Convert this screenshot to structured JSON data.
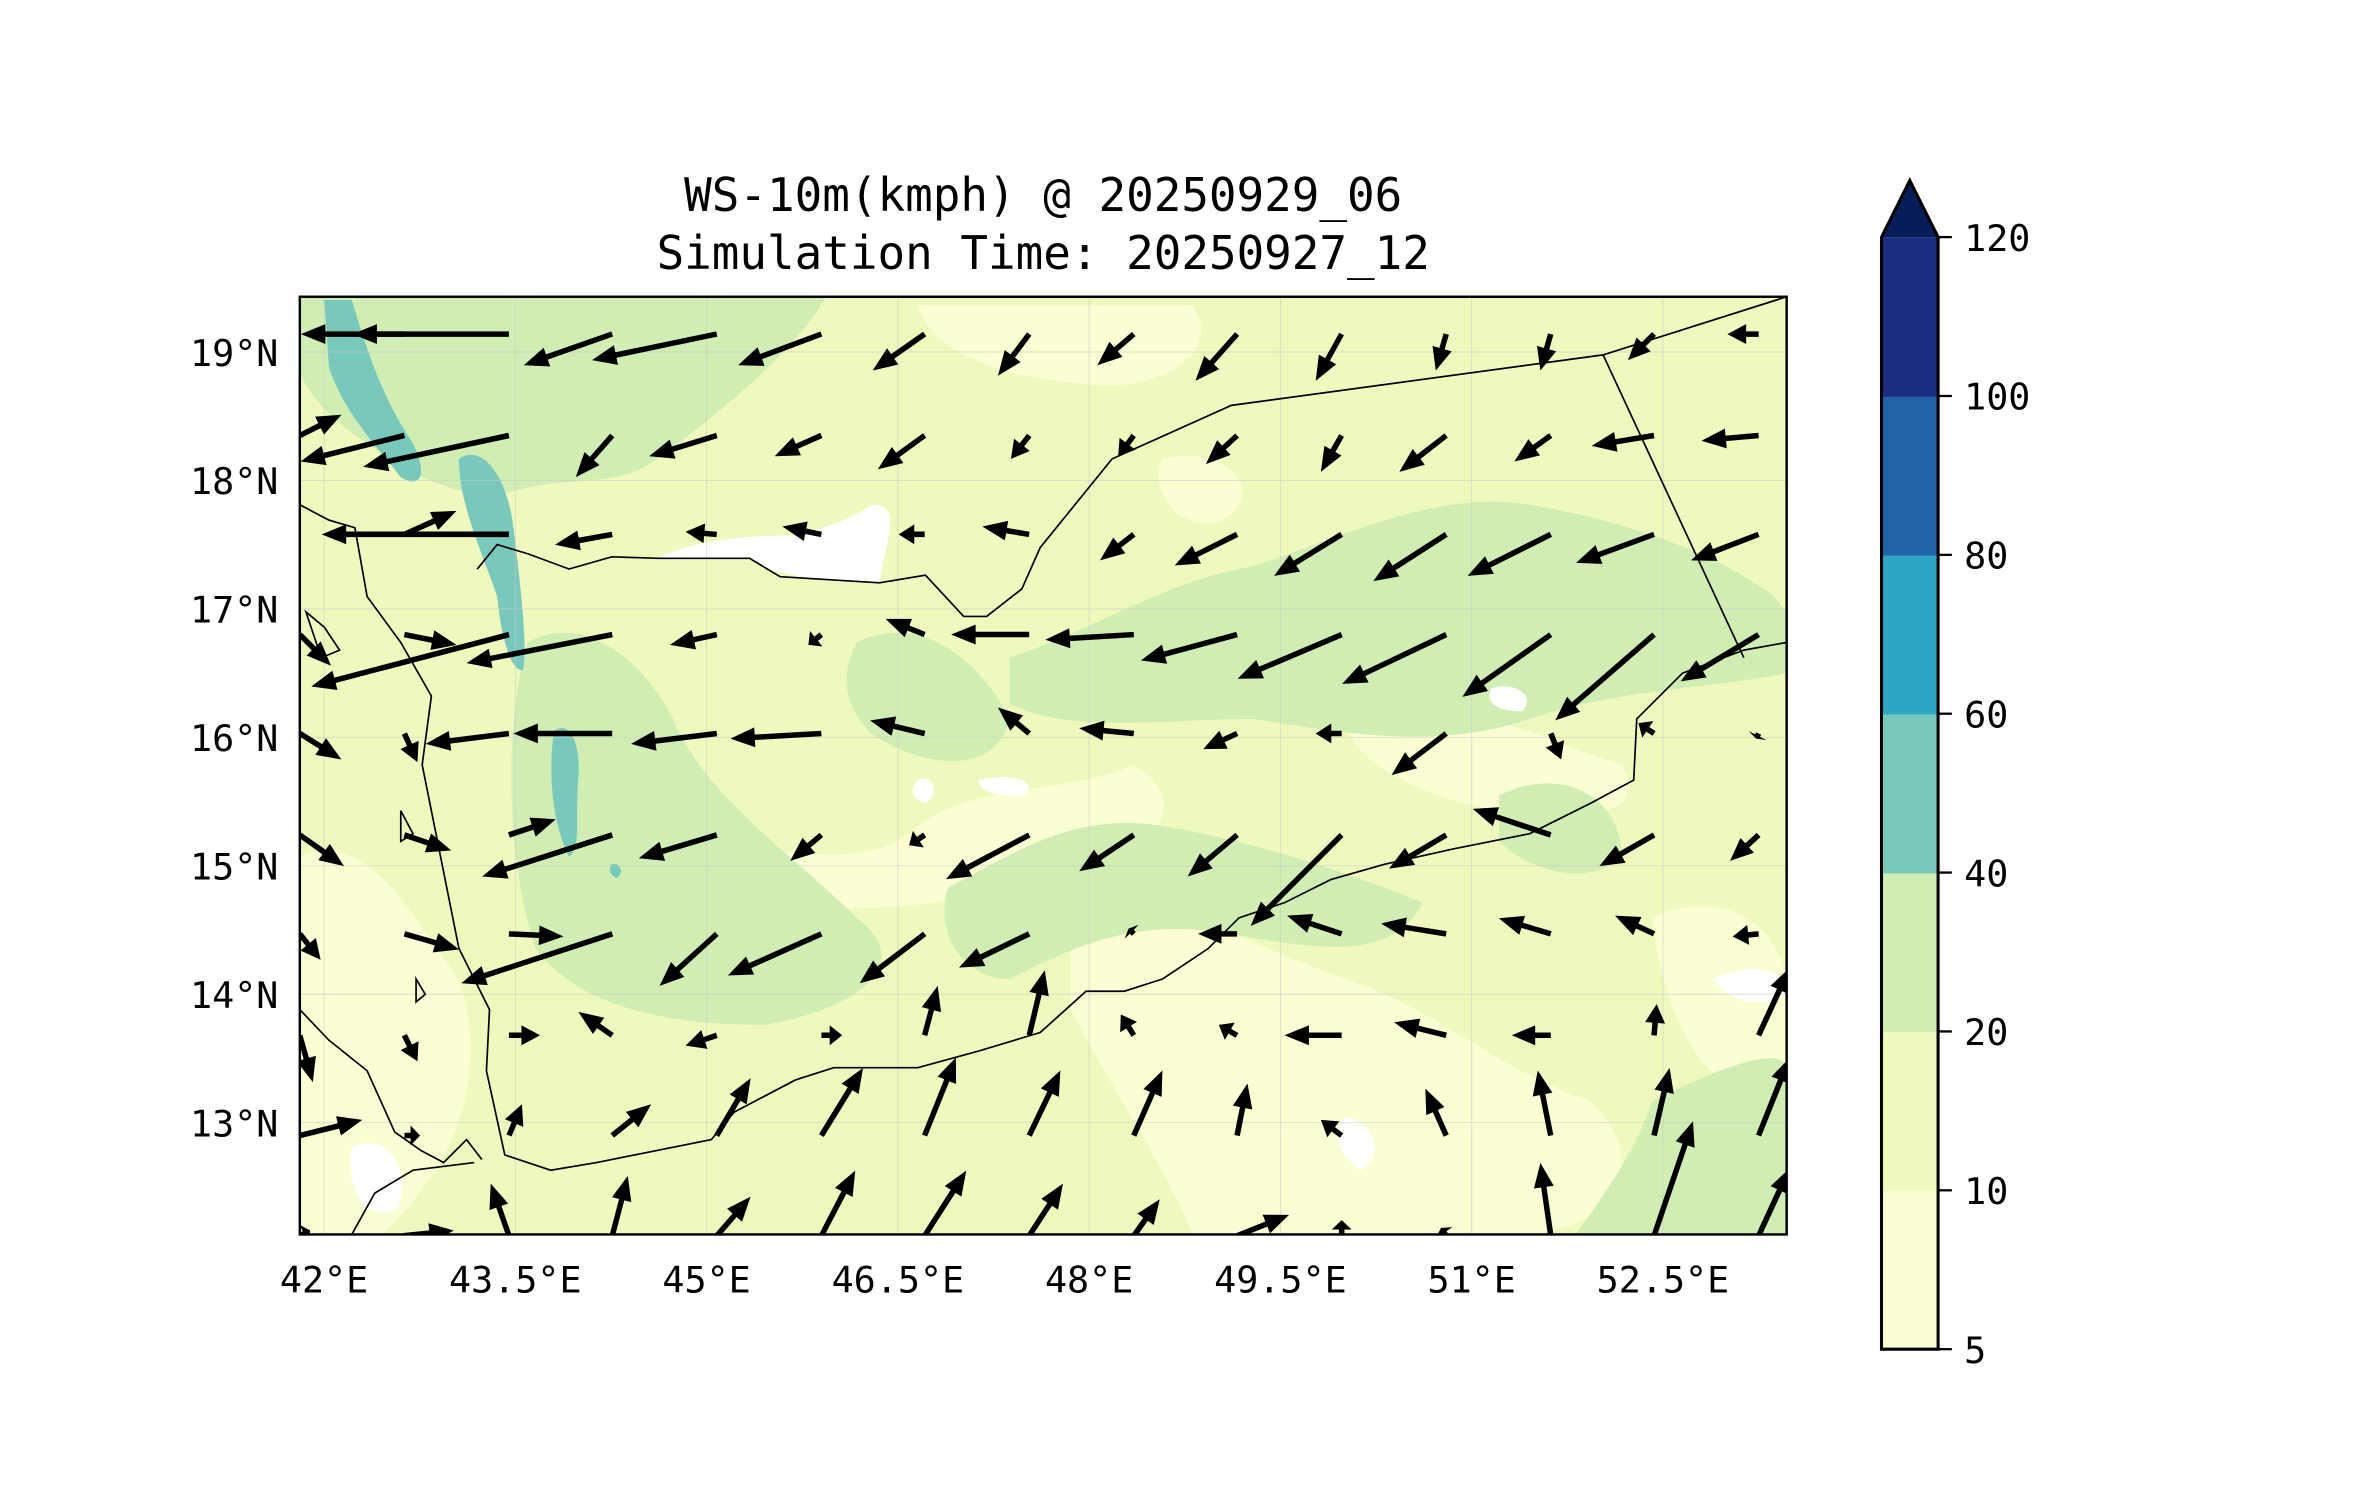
{
  "chart_data": {
    "type": "heatmap",
    "title_line1": "WS-10m(kmph) @ 20250929_06",
    "title_line2": "Simulation Time: 20250927_12",
    "xlabel": "",
    "ylabel": "",
    "xlim": [
      41.81,
      53.47
    ],
    "ylim": [
      12.13,
      19.43
    ],
    "x_ticks": [
      {
        "value": 42,
        "label": "42°E"
      },
      {
        "value": 43.5,
        "label": "43.5°E"
      },
      {
        "value": 45,
        "label": "45°E"
      },
      {
        "value": 46.5,
        "label": "46.5°E"
      },
      {
        "value": 48,
        "label": "48°E"
      },
      {
        "value": 49.5,
        "label": "49.5°E"
      },
      {
        "value": 51,
        "label": "51°E"
      },
      {
        "value": 52.5,
        "label": "52.5°E"
      }
    ],
    "y_ticks": [
      {
        "value": 19,
        "label": "19°N"
      },
      {
        "value": 18,
        "label": "18°N"
      },
      {
        "value": 17,
        "label": "17°N"
      },
      {
        "value": 16,
        "label": "16°N"
      },
      {
        "value": 15,
        "label": "15°N"
      },
      {
        "value": 14,
        "label": "14°N"
      },
      {
        "value": 13,
        "label": "13°N"
      }
    ],
    "grid": true,
    "colorbar": {
      "levels": [
        "5",
        "10",
        "20",
        "40",
        "60",
        "80",
        "100",
        "120"
      ],
      "colors": [
        "#fbfdd2",
        "#f0f9bd",
        "#d0edb4",
        "#78c9bb",
        "#2ea5c4",
        "#2262a8",
        "#1c2c80"
      ],
      "extend_color": "#081d58",
      "extend": "max",
      "placement": "right"
    },
    "wind_vectors": {
      "units": "kmph",
      "lon": [
        41.81,
        42.63,
        43.45,
        44.26,
        45.08,
        45.9,
        46.71,
        47.53,
        48.35,
        49.16,
        49.98,
        50.8,
        51.62,
        52.43,
        53.25
      ],
      "lat": [
        19.14,
        18.35,
        17.58,
        16.8,
        16.03,
        15.24,
        14.47,
        13.68,
        12.9,
        12.12
      ],
      "u": [
        [
          -3,
          -10,
          -40,
          -17,
          -24,
          -16,
          -10,
          -6,
          -7,
          -8,
          -5,
          -2,
          -2,
          -5,
          -6
        ],
        [
          8,
          -20,
          -28,
          -7,
          -13,
          -9,
          -9,
          -3.5,
          -3,
          -6,
          -4,
          -9,
          -7,
          -12,
          -11
        ],
        [
          -4,
          10,
          -36,
          -11,
          -6,
          -7.5,
          -5,
          -9,
          -6.5,
          -12,
          -13,
          -14,
          -16,
          -15,
          -13
        ],
        [
          6,
          10,
          -38,
          -28,
          -9,
          -2.5,
          -7.5,
          -15,
          -17,
          -18.5,
          -20,
          -20,
          -17,
          -19,
          -15
        ],
        [
          8,
          2.5,
          -16,
          -19,
          -16.5,
          -17.5,
          -10.5,
          -6,
          -10.5,
          -6.5,
          -5,
          -10.5,
          2,
          -3,
          -0.5
        ],
        [
          8.5,
          9,
          9,
          -25,
          -15,
          -6,
          -3,
          -16,
          -10.5,
          -9.5,
          -17.5,
          -11,
          -15,
          -10.5,
          -5.5
        ],
        [
          4,
          10.5,
          10.5,
          -29,
          -11,
          -18,
          -12.5,
          -13.5,
          -1,
          -7.5,
          -10.5,
          -12.5,
          -10,
          -7.5,
          -5
        ],
        [
          2.5,
          2.5,
          6,
          -6.5,
          -6,
          4,
          2.5,
          3,
          -2.5,
          -3.5,
          -11,
          -10,
          -7.5,
          0.5,
          6
        ],
        [
          12,
          3,
          2.5,
          7.5,
          6.5,
          8,
          6,
          6,
          5.5,
          2,
          -4,
          -4,
          -2.5,
          3,
          6
        ],
        [
          2,
          9.5,
          -3.5,
          3,
          6.5,
          6.5,
          8,
          6.5,
          5,
          10,
          0,
          -1,
          -2,
          7.5,
          6
        ]
      ],
      "v": [
        [
          0,
          0,
          0,
          -6,
          -5,
          -6,
          -7,
          -8,
          -6,
          -9,
          -9,
          -7,
          -7,
          -5,
          0
        ],
        [
          4,
          -5,
          -6,
          -8,
          -4,
          -4,
          -6.5,
          -4.5,
          -4,
          -5.5,
          -7,
          -7,
          -5,
          -2,
          -1
        ],
        [
          0,
          4.5,
          0,
          -2,
          0.5,
          1.5,
          0,
          1.5,
          -5,
          -6,
          -8,
          -9,
          -8,
          -5.5,
          -5
        ],
        [
          -6,
          -2,
          -10,
          -5.5,
          -2,
          -2,
          3,
          0,
          -1,
          -5,
          -8.5,
          -9.5,
          -12,
          -16.5,
          -9
        ],
        [
          -5,
          -5.5,
          -2,
          0,
          -2,
          -1,
          2.5,
          5,
          1,
          -3,
          0,
          -8,
          -5,
          2,
          -1
        ],
        [
          -6,
          -3,
          3,
          -8,
          -4.5,
          -5,
          -2,
          -8.5,
          -7,
          -8,
          -17.5,
          -6.5,
          5,
          -6,
          -5
        ],
        [
          -5,
          -3,
          -0.5,
          -9.5,
          -10,
          -8,
          -9.5,
          -6.5,
          1,
          0,
          3.5,
          2,
          3,
          3.5,
          -0.5
        ],
        [
          -9,
          -5,
          0,
          4.5,
          -2,
          0,
          9.5,
          12.5,
          4,
          2,
          0,
          2.5,
          0,
          6,
          13
        ],
        [
          3,
          0,
          6,
          6,
          11,
          13,
          15,
          12.5,
          12.5,
          10,
          3,
          9,
          12.5,
          13,
          15
        ],
        [
          1,
          1,
          10,
          11.5,
          7.5,
          12.5,
          12.5,
          10,
          7,
          4,
          3,
          1.5,
          14,
          22,
          13
        ]
      ]
    }
  }
}
